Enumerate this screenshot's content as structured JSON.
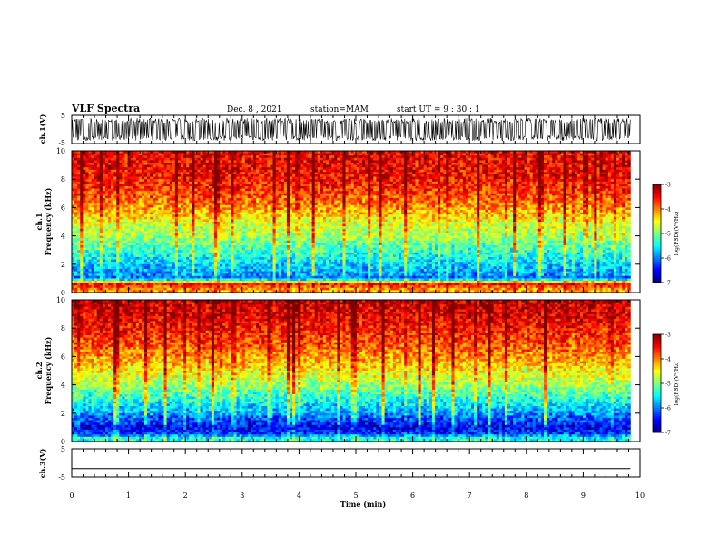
{
  "header": {
    "title": "VLF Spectra",
    "date": "Dec. 8 , 2021",
    "station": "station=MAM",
    "start": "start UT =  9 : 30 : 1"
  },
  "chart_data": [
    {
      "type": "line",
      "name": "ch1-waveform",
      "ylabel": "ch.1(V)",
      "ylim": [
        -5,
        5
      ],
      "yticks": [
        "5",
        "-5"
      ],
      "xlim": [
        0,
        10
      ],
      "description_free": true,
      "signal": "dense impulsive waveform (sferics) filling roughly -4 to +4 V",
      "amplitude_range": [
        -4,
        4
      ]
    },
    {
      "type": "heatmap",
      "name": "ch1-spectrogram",
      "ylabel": "ch.1\nFrequency  (kHz)",
      "ylabel_lines": [
        "ch.1",
        "Frequency  (kHz)"
      ],
      "ylim": [
        0,
        10
      ],
      "yticks": [
        "0",
        "2",
        "4",
        "6",
        "8",
        "10"
      ],
      "xlim": [
        0,
        9.83
      ],
      "colorbar": {
        "label": "log(PSD)(V²/Hz)",
        "range": [
          -7,
          -3
        ],
        "ticks": [
          "-3",
          "-4",
          "-5",
          "-6",
          "-7"
        ]
      },
      "levels_by_frequency_khz": [
        {
          "f": 0.2,
          "logpsd": -4.2
        },
        {
          "f": 0.6,
          "logpsd": -3.6
        },
        {
          "f": 1.0,
          "logpsd": -6.1
        },
        {
          "f": 1.5,
          "logpsd": -6.0
        },
        {
          "f": 2.0,
          "logpsd": -5.8
        },
        {
          "f": 3.0,
          "logpsd": -5.4
        },
        {
          "f": 4.0,
          "logpsd": -5.0
        },
        {
          "f": 5.0,
          "logpsd": -4.7
        },
        {
          "f": 6.0,
          "logpsd": -4.2
        },
        {
          "f": 7.0,
          "logpsd": -3.9
        },
        {
          "f": 8.0,
          "logpsd": -3.7
        },
        {
          "f": 9.0,
          "logpsd": -3.6
        },
        {
          "f": 10.0,
          "logpsd": -3.6
        }
      ]
    },
    {
      "type": "heatmap",
      "name": "ch2-spectrogram",
      "ylabel_lines": [
        "ch.2",
        "Frequency  (kHz)"
      ],
      "ylim": [
        0,
        10
      ],
      "yticks": [
        "0",
        "2",
        "4",
        "6",
        "8",
        "10"
      ],
      "xlim": [
        0,
        9.83
      ],
      "colorbar": {
        "label": "log(PSD)(V²/Hz)",
        "range": [
          -7,
          -3
        ],
        "ticks": [
          "-3",
          "-4",
          "-5",
          "-6",
          "-7"
        ]
      },
      "levels_by_frequency_khz": [
        {
          "f": 0.2,
          "logpsd": -5.4
        },
        {
          "f": 0.6,
          "logpsd": -6.4
        },
        {
          "f": 1.0,
          "logpsd": -6.6
        },
        {
          "f": 1.5,
          "logpsd": -6.4
        },
        {
          "f": 2.0,
          "logpsd": -6.0
        },
        {
          "f": 3.0,
          "logpsd": -5.5
        },
        {
          "f": 4.0,
          "logpsd": -5.0
        },
        {
          "f": 5.0,
          "logpsd": -4.6
        },
        {
          "f": 6.0,
          "logpsd": -4.2
        },
        {
          "f": 7.0,
          "logpsd": -3.9
        },
        {
          "f": 8.0,
          "logpsd": -3.7
        },
        {
          "f": 9.0,
          "logpsd": -3.5
        },
        {
          "f": 10.0,
          "logpsd": -3.4
        }
      ]
    },
    {
      "type": "line",
      "name": "ch3-waveform",
      "ylabel": "ch.3(V)",
      "ylim": [
        -5,
        5
      ],
      "yticks": [
        "5",
        "-5"
      ],
      "xlim": [
        0,
        9.83
      ],
      "signal": "flat line",
      "value": -2
    }
  ],
  "xaxis": {
    "label": "Time  (min)",
    "range": [
      0,
      10
    ],
    "ticks": [
      "0",
      "1",
      "2",
      "3",
      "4",
      "5",
      "6",
      "7",
      "8",
      "9",
      "10"
    ]
  }
}
